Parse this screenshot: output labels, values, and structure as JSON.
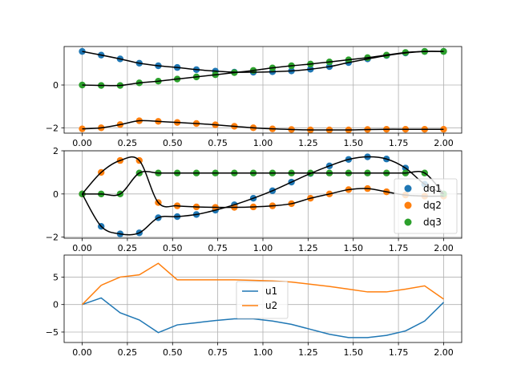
{
  "colors": {
    "blue": "#1f77b4",
    "orange": "#ff7f0e",
    "green": "#2ca02c",
    "black": "#000000",
    "grid": "#b0b0b0"
  },
  "chart_data": [
    {
      "type": "scatter",
      "xlim": [
        -0.1,
        2.1
      ],
      "ylim": [
        -2.25,
        1.8
      ],
      "xticks": [
        0.0,
        0.25,
        0.5,
        0.75,
        1.0,
        1.25,
        1.5,
        1.75,
        2.0
      ],
      "xtick_labels": [
        "0.00",
        "0.25",
        "0.50",
        "0.75",
        "1.00",
        "1.25",
        "1.50",
        "1.75",
        "2.00"
      ],
      "yticks": [
        -2,
        0
      ],
      "ytick_labels": [
        "−2",
        "0"
      ],
      "grid": true,
      "x": [
        0.0,
        0.105,
        0.21,
        0.316,
        0.421,
        0.526,
        0.632,
        0.737,
        0.842,
        0.947,
        1.053,
        1.158,
        1.263,
        1.368,
        1.474,
        1.579,
        1.684,
        1.789,
        1.895,
        2.0
      ],
      "series": [
        {
          "color": "blue",
          "values": [
            1.57,
            1.4,
            1.22,
            1.02,
            0.9,
            0.82,
            0.72,
            0.65,
            0.6,
            0.6,
            0.62,
            0.66,
            0.74,
            0.86,
            1.05,
            1.22,
            1.38,
            1.5,
            1.57,
            1.57
          ]
        },
        {
          "color": "orange",
          "values": [
            -2.05,
            -2.0,
            -1.85,
            -1.67,
            -1.7,
            -1.75,
            -1.8,
            -1.86,
            -1.93,
            -2.0,
            -2.05,
            -2.08,
            -2.1,
            -2.1,
            -2.1,
            -2.08,
            -2.07,
            -2.07,
            -2.07,
            -2.07
          ]
        },
        {
          "color": "green",
          "values": [
            0.0,
            -0.02,
            -0.02,
            0.1,
            0.18,
            0.28,
            0.38,
            0.48,
            0.58,
            0.68,
            0.8,
            0.9,
            0.98,
            1.08,
            1.18,
            1.28,
            1.4,
            1.52,
            1.57,
            1.57
          ]
        }
      ]
    },
    {
      "type": "scatter",
      "xlim": [
        -0.1,
        2.1
      ],
      "ylim": [
        -2.05,
        2.0
      ],
      "xticks": [
        0.0,
        0.25,
        0.5,
        0.75,
        1.0,
        1.25,
        1.5,
        1.75,
        2.0
      ],
      "xtick_labels": [
        "0.00",
        "0.25",
        "0.50",
        "0.75",
        "1.00",
        "1.25",
        "1.50",
        "1.75",
        "2.00"
      ],
      "yticks": [
        -2,
        0,
        2
      ],
      "ytick_labels": [
        "−2",
        "0",
        "2"
      ],
      "grid": true,
      "legend_position": "right",
      "x": [
        0.0,
        0.105,
        0.21,
        0.316,
        0.421,
        0.526,
        0.632,
        0.737,
        0.842,
        0.947,
        1.053,
        1.158,
        1.263,
        1.368,
        1.474,
        1.579,
        1.684,
        1.789,
        1.895,
        2.0
      ],
      "series": [
        {
          "name": "dq1",
          "color": "blue",
          "values": [
            0.0,
            -1.5,
            -1.85,
            -1.8,
            -1.1,
            -1.05,
            -0.95,
            -0.75,
            -0.5,
            -0.2,
            0.15,
            0.55,
            0.95,
            1.3,
            1.6,
            1.72,
            1.62,
            1.2,
            0.45,
            0.0
          ]
        },
        {
          "name": "dq2",
          "color": "orange",
          "values": [
            0.0,
            1.0,
            1.55,
            1.55,
            -0.4,
            -0.55,
            -0.6,
            -0.62,
            -0.62,
            -0.6,
            -0.55,
            -0.45,
            -0.2,
            0.0,
            0.2,
            0.25,
            0.1,
            -0.05,
            -0.1,
            -0.1
          ]
        },
        {
          "name": "dq3",
          "color": "green",
          "values": [
            0.0,
            0.0,
            0.0,
            0.97,
            0.97,
            0.97,
            0.97,
            0.97,
            0.97,
            0.97,
            0.97,
            0.97,
            0.97,
            0.97,
            0.97,
            0.97,
            0.97,
            0.97,
            0.97,
            0.0
          ]
        }
      ]
    },
    {
      "type": "line",
      "xlim": [
        -0.1,
        2.1
      ],
      "ylim": [
        -6.9,
        9.0
      ],
      "xticks": [
        0.0,
        0.25,
        0.5,
        0.75,
        1.0,
        1.25,
        1.5,
        1.75,
        2.0
      ],
      "xtick_labels": [
        "0.00",
        "0.25",
        "0.50",
        "0.75",
        "1.00",
        "1.25",
        "1.50",
        "1.75",
        "2.00"
      ],
      "yticks": [
        -5,
        0,
        5
      ],
      "ytick_labels": [
        "−5",
        "0",
        "5"
      ],
      "grid": true,
      "legend_position": "center",
      "x": [
        0.0,
        0.105,
        0.21,
        0.316,
        0.421,
        0.526,
        0.632,
        0.737,
        0.842,
        0.947,
        1.053,
        1.158,
        1.263,
        1.368,
        1.474,
        1.579,
        1.684,
        1.789,
        1.895,
        2.0
      ],
      "series": [
        {
          "name": "u1",
          "color": "blue",
          "values": [
            0.0,
            1.2,
            -1.5,
            -2.8,
            -5.1,
            -3.7,
            -3.3,
            -2.9,
            -2.6,
            -2.6,
            -3.0,
            -3.6,
            -4.5,
            -5.4,
            -6.0,
            -6.0,
            -5.6,
            -4.8,
            -3.0,
            0.4
          ]
        },
        {
          "name": "u2",
          "color": "orange",
          "values": [
            0.0,
            3.5,
            5.0,
            5.4,
            7.5,
            4.5,
            4.5,
            4.5,
            4.5,
            4.4,
            4.3,
            4.1,
            3.7,
            3.3,
            2.8,
            2.3,
            2.3,
            2.8,
            3.4,
            1.0
          ]
        }
      ]
    }
  ]
}
